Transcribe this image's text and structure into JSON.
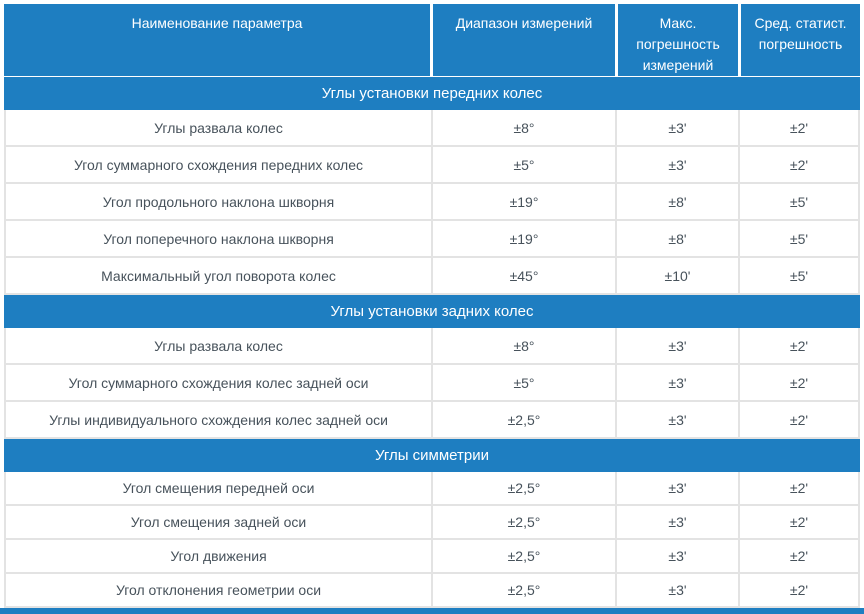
{
  "table": {
    "columns": [
      {
        "label": "Наименование параметра"
      },
      {
        "label": "Диапазон измерений"
      },
      {
        "label": "Макс. погрешность измерений"
      },
      {
        "label": "Сред. статист. погрешность"
      }
    ],
    "sections": [
      {
        "title": "Углы установки передних колес",
        "rows": [
          {
            "parameter": "Углы развала колес",
            "range": "±8°",
            "max_error": "±3'",
            "stat_error": "±2'"
          },
          {
            "parameter": "Угол суммарного схождения передних колес",
            "range": "±5°",
            "max_error": "±3'",
            "stat_error": "±2'"
          },
          {
            "parameter": "Угол продольного наклона шкворня",
            "range": "±19°",
            "max_error": "±8'",
            "stat_error": "±5'"
          },
          {
            "parameter": "Угол поперечного наклона шкворня",
            "range": "±19°",
            "max_error": "±8'",
            "stat_error": "±5'"
          },
          {
            "parameter": "Максимальный угол поворота колес",
            "range": "±45°",
            "max_error": "±10'",
            "stat_error": "±5'"
          }
        ]
      },
      {
        "title": "Углы установки задних колес",
        "rows": [
          {
            "parameter": "Углы развала колес",
            "range": "±8°",
            "max_error": "±3'",
            "stat_error": "±2'"
          },
          {
            "parameter": "Угол суммарного схождения колес задней оси",
            "range": "±5°",
            "max_error": "±3'",
            "stat_error": "±2'"
          },
          {
            "parameter": "Углы индивидуального схождения колес задней оси",
            "range": "±2,5°",
            "max_error": "±3'",
            "stat_error": "±2'"
          }
        ]
      },
      {
        "title": "Углы симметрии",
        "rows": [
          {
            "parameter": "Угол смещения передней оси",
            "range": "±2,5°",
            "max_error": "±3'",
            "stat_error": "±2'"
          },
          {
            "parameter": "Угол смещения задней оси",
            "range": "±2,5°",
            "max_error": "±3'",
            "stat_error": "±2'"
          },
          {
            "parameter": "Угол движения",
            "range": "±2,5°",
            "max_error": "±3'",
            "stat_error": "±2'"
          },
          {
            "parameter": "Угол отклонения геометрии оси",
            "range": "±2,5°",
            "max_error": "±3'",
            "stat_error": "±2'"
          }
        ]
      }
    ]
  },
  "colors": {
    "accent_blue": "#1e7ec1",
    "border_gray": "#e3e3e3",
    "body_text": "#47525b",
    "header_text": "#ffffff"
  }
}
